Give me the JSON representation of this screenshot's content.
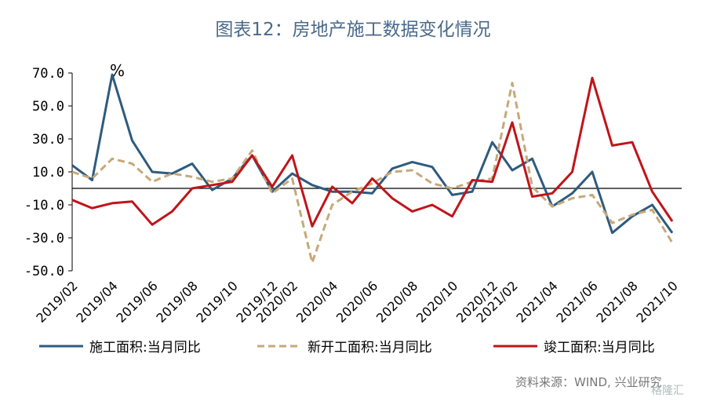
{
  "title": "图表12：房地产施工数据变化情况",
  "source": "资料来源：WIND, 兴业研究",
  "watermark": "格隆汇",
  "colors": {
    "s1": "#2e5b7e",
    "s2": "#c6a979",
    "s3": "#c0141a",
    "axis": "#000000"
  },
  "chart_data": {
    "type": "line",
    "unit": "%",
    "ylim": [
      -50,
      70
    ],
    "yticks": [
      "70.0",
      "50.0",
      "30.0",
      "10.0",
      "-10.0",
      "-30.0",
      "-50.0"
    ],
    "ytick_values": [
      70,
      50,
      30,
      10,
      -10,
      -30,
      -50
    ],
    "x_tick_labels": [
      "2019/02",
      "2019/04",
      "2019/06",
      "2019/08",
      "2019/10",
      "2019/12",
      "2020/02",
      "2020/04",
      "2020/06",
      "2020/08",
      "2020/10",
      "2020/12",
      "2021/02",
      "2021/04",
      "2021/06",
      "2021/08",
      "2021/10"
    ],
    "x": [
      "2019/02",
      "2019/03",
      "2019/04",
      "2019/05",
      "2019/06",
      "2019/07",
      "2019/08",
      "2019/09",
      "2019/10",
      "2019/11",
      "2019/12",
      "2020/02",
      "2020/03",
      "2020/04",
      "2020/05",
      "2020/06",
      "2020/07",
      "2020/08",
      "2020/09",
      "2020/10",
      "2020/11",
      "2020/12",
      "2021/02",
      "2021/03",
      "2021/04",
      "2021/05",
      "2021/06",
      "2021/07",
      "2021/08",
      "2021/09",
      "2021/10"
    ],
    "legend_position": "bottom",
    "series": [
      {
        "name": "施工面积:当月同比",
        "style": "solid",
        "values": [
          14,
          5,
          69,
          29,
          10,
          9,
          15,
          -1,
          6,
          20,
          -2,
          9,
          2,
          -2,
          -2,
          -3,
          12,
          16,
          13,
          -4,
          -2,
          28,
          11,
          18,
          -11,
          -3,
          10,
          -27,
          -17,
          -10,
          -27
        ]
      },
      {
        "name": "新开工面积:当月同比",
        "style": "dashed",
        "values": [
          10,
          6,
          18,
          15,
          4,
          9,
          7,
          4,
          6,
          23,
          -3,
          6,
          -45,
          -10,
          -2,
          3,
          10,
          11,
          3,
          0,
          4,
          6,
          64,
          1,
          -11,
          -6,
          -4,
          -21,
          -16,
          -13,
          -33
        ]
      },
      {
        "name": "竣工面积:当月同比",
        "style": "solid",
        "values": [
          -7,
          -12,
          -9,
          -8,
          -22,
          -14,
          0,
          2,
          4,
          20,
          1,
          20,
          -23,
          1,
          -9,
          6,
          -6,
          -14,
          -10,
          -17,
          5,
          4,
          40,
          -5,
          -3,
          10,
          67,
          26,
          28,
          -2,
          -20
        ]
      }
    ]
  }
}
